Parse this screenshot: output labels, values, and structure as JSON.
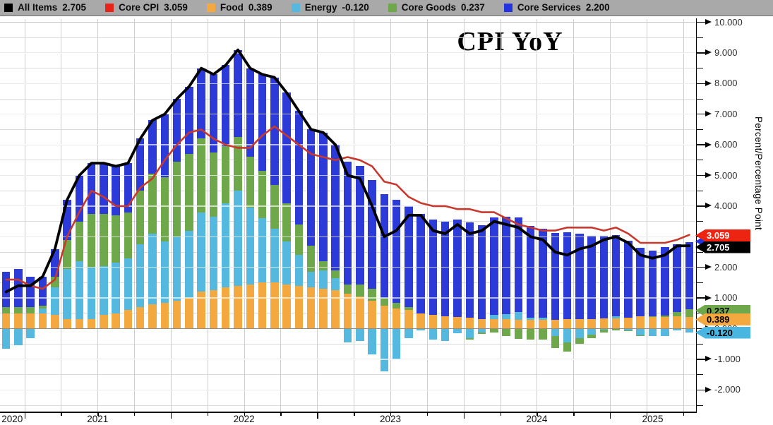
{
  "title": "CPI YoY",
  "legend": [
    {
      "label": "All Items",
      "value": "2.705",
      "color": "#000000"
    },
    {
      "label": "Core CPI",
      "value": "3.059",
      "color": "#e8231a"
    },
    {
      "label": "Food",
      "value": "0.389",
      "color": "#f4a940"
    },
    {
      "label": "Energy",
      "value": "-0.120",
      "color": "#55b9df"
    },
    {
      "label": "Core Goods",
      "value": "0.237",
      "color": "#6fa84b"
    },
    {
      "label": "Core Services",
      "value": "2.200",
      "color": "#2433df"
    }
  ],
  "y_axis": {
    "label": "Percent/Percentage Point",
    "tick_labels": [
      "10.000",
      "9.000",
      "8.000",
      "7.000",
      "6.000",
      "5.000",
      "4.000",
      "3.000",
      "2.000",
      "1.000",
      "0.000",
      "-1.000",
      "-2.000"
    ]
  },
  "x_axis": {
    "year_labels": [
      "2020",
      "2021",
      "2022",
      "2023",
      "2024",
      "2025"
    ]
  },
  "badges": [
    {
      "label": "3.059",
      "bg": "#ee2412",
      "fg": "#ffffff"
    },
    {
      "label": "2.705",
      "bg": "#000000",
      "fg": "#ffffff"
    },
    {
      "label": "0.237",
      "bg": "#6fa84b",
      "fg": "#000000"
    },
    {
      "label": "0.389",
      "bg": "#f4a940",
      "fg": "#000000"
    },
    {
      "label": "-0.120",
      "bg": "#49b6e2",
      "fg": "#000000"
    }
  ],
  "chart_data": {
    "type": "bar",
    "subtype": "stacked-bars-with-lines",
    "title": "CPI YoY",
    "ylabel": "Percent/Percentage Point",
    "ylim": [
      -2.7,
      10.1
    ],
    "grid": true,
    "legend_position": "top",
    "x": [
      "2020-11",
      "2020-12",
      "2021-01",
      "2021-02",
      "2021-03",
      "2021-04",
      "2021-05",
      "2021-06",
      "2021-07",
      "2021-08",
      "2021-09",
      "2021-10",
      "2021-11",
      "2021-12",
      "2022-01",
      "2022-02",
      "2022-03",
      "2022-04",
      "2022-05",
      "2022-06",
      "2022-07",
      "2022-08",
      "2022-09",
      "2022-10",
      "2022-11",
      "2022-12",
      "2023-01",
      "2023-02",
      "2023-03",
      "2023-04",
      "2023-05",
      "2023-06",
      "2023-07",
      "2023-08",
      "2023-09",
      "2023-10",
      "2023-11",
      "2023-12",
      "2024-01",
      "2024-02",
      "2024-03",
      "2024-04",
      "2024-05",
      "2024-06",
      "2024-07",
      "2024-08",
      "2024-09",
      "2024-10",
      "2024-11",
      "2024-12",
      "2025-01",
      "2025-02",
      "2025-03",
      "2025-04",
      "2025-05",
      "2025-06",
      "2025-07"
    ],
    "series": [
      {
        "name": "Food",
        "kind": "bar",
        "color": "#f4a940",
        "values": [
          0.5,
          0.5,
          0.5,
          0.5,
          0.45,
          0.3,
          0.3,
          0.3,
          0.45,
          0.5,
          0.6,
          0.7,
          0.8,
          0.85,
          0.9,
          1.0,
          1.2,
          1.25,
          1.35,
          1.4,
          1.45,
          1.5,
          1.5,
          1.45,
          1.4,
          1.35,
          1.3,
          1.25,
          1.15,
          1.05,
          0.9,
          0.75,
          0.65,
          0.6,
          0.5,
          0.45,
          0.4,
          0.37,
          0.35,
          0.3,
          0.3,
          0.3,
          0.28,
          0.28,
          0.28,
          0.28,
          0.3,
          0.3,
          0.32,
          0.33,
          0.33,
          0.35,
          0.4,
          0.38,
          0.38,
          0.4,
          0.389
        ]
      },
      {
        "name": "Energy",
        "kind": "bar",
        "color": "#55b9df",
        "values": [
          -0.65,
          -0.55,
          -0.3,
          0.15,
          0.9,
          1.65,
          1.9,
          1.7,
          1.6,
          1.65,
          1.7,
          2.05,
          2.3,
          2.0,
          2.1,
          2.2,
          2.6,
          2.4,
          2.75,
          3.1,
          2.5,
          2.1,
          1.75,
          1.4,
          1.0,
          0.5,
          0.6,
          0.4,
          -0.45,
          -0.4,
          -0.85,
          -1.4,
          -1.0,
          -0.3,
          -0.05,
          -0.35,
          -0.4,
          -0.15,
          -0.3,
          -0.12,
          0.15,
          0.18,
          0.25,
          0.07,
          0.08,
          -0.25,
          -0.45,
          -0.3,
          -0.2,
          -0.03,
          0.07,
          -0.05,
          -0.22,
          -0.25,
          -0.25,
          -0.06,
          -0.12
        ]
      },
      {
        "name": "Core Goods",
        "kind": "bar",
        "color": "#6fa84b",
        "values": [
          0.2,
          0.2,
          0.2,
          0.1,
          0.35,
          0.95,
          1.3,
          1.75,
          1.7,
          1.55,
          1.5,
          1.75,
          1.95,
          2.1,
          2.45,
          2.5,
          2.4,
          2.1,
          1.85,
          1.75,
          1.65,
          1.55,
          1.45,
          1.25,
          1.0,
          0.85,
          0.3,
          0.25,
          0.3,
          0.4,
          0.4,
          0.25,
          0.2,
          0.1,
          0.0,
          0.0,
          0.0,
          0.0,
          -0.06,
          -0.06,
          -0.12,
          -0.25,
          -0.33,
          -0.35,
          -0.36,
          -0.38,
          -0.3,
          -0.2,
          -0.12,
          -0.1,
          -0.05,
          -0.02,
          -0.02,
          0.03,
          0.05,
          0.14,
          0.237
        ]
      },
      {
        "name": "Core Services",
        "kind": "bar",
        "color": "#2c3ad8",
        "values": [
          1.15,
          1.25,
          1.0,
          0.95,
          0.9,
          1.3,
          1.5,
          1.65,
          1.65,
          1.6,
          1.6,
          1.7,
          1.75,
          2.05,
          2.05,
          2.2,
          2.3,
          2.55,
          2.65,
          2.85,
          2.9,
          3.15,
          3.5,
          3.6,
          3.7,
          3.8,
          4.2,
          4.1,
          4.0,
          3.85,
          3.55,
          3.4,
          3.35,
          3.3,
          3.25,
          3.1,
          3.1,
          3.18,
          3.11,
          3.08,
          3.17,
          3.17,
          3.1,
          3.0,
          2.9,
          2.85,
          2.85,
          2.8,
          2.7,
          2.7,
          2.65,
          2.52,
          2.24,
          2.14,
          2.22,
          2.22,
          2.2
        ]
      },
      {
        "name": "All Items",
        "kind": "line",
        "color": "#000000",
        "values": [
          1.2,
          1.4,
          1.4,
          1.7,
          2.6,
          4.2,
          5.0,
          5.4,
          5.4,
          5.3,
          5.4,
          6.2,
          6.8,
          7.0,
          7.5,
          7.9,
          8.5,
          8.3,
          8.6,
          9.1,
          8.5,
          8.3,
          8.2,
          7.7,
          7.1,
          6.5,
          6.4,
          6.0,
          5.0,
          4.9,
          4.0,
          3.0,
          3.2,
          3.7,
          3.7,
          3.2,
          3.1,
          3.4,
          3.1,
          3.2,
          3.5,
          3.4,
          3.3,
          3.0,
          2.9,
          2.5,
          2.4,
          2.6,
          2.7,
          2.9,
          3.0,
          2.8,
          2.4,
          2.3,
          2.4,
          2.7,
          2.705
        ]
      },
      {
        "name": "Core CPI",
        "kind": "line",
        "color": "#c9382c",
        "values": [
          1.6,
          1.6,
          1.4,
          1.3,
          1.6,
          3.0,
          3.8,
          4.5,
          4.3,
          4.0,
          4.0,
          4.6,
          4.9,
          5.5,
          6.0,
          6.4,
          6.5,
          6.2,
          6.0,
          5.9,
          5.9,
          6.3,
          6.6,
          6.3,
          6.0,
          5.7,
          5.6,
          5.5,
          5.6,
          5.5,
          5.3,
          4.8,
          4.7,
          4.3,
          4.1,
          4.0,
          4.0,
          3.9,
          3.9,
          3.8,
          3.8,
          3.6,
          3.4,
          3.3,
          3.2,
          3.2,
          3.3,
          3.3,
          3.3,
          3.2,
          3.3,
          3.1,
          2.8,
          2.8,
          2.8,
          2.9,
          3.059
        ]
      }
    ]
  }
}
